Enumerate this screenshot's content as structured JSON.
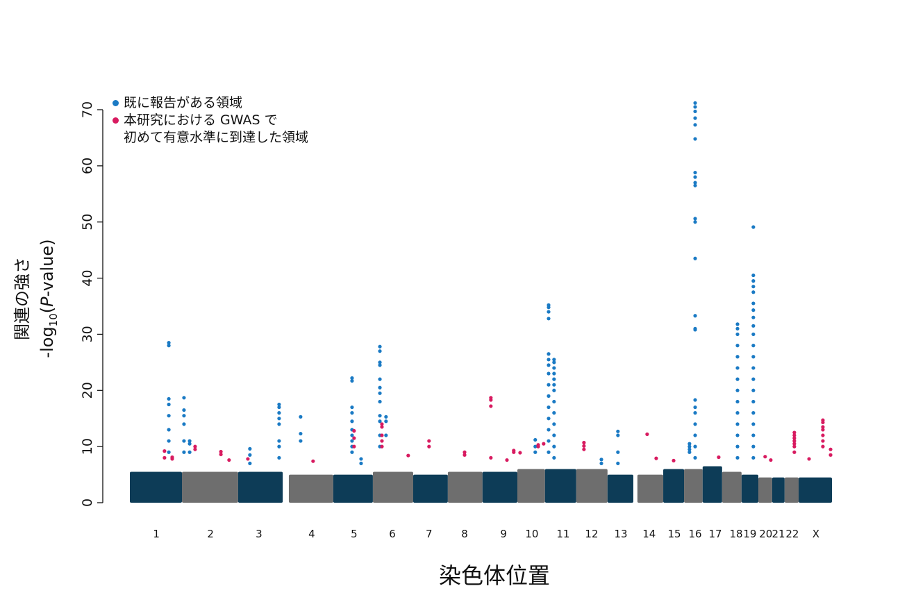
{
  "chart_data": {
    "type": "manhattan",
    "x_label": "染色体位置",
    "y_label": {
      "line1": "関連の強さ",
      "line2_parts": [
        "-log",
        "10",
        "(",
        "P",
        "-value)"
      ]
    },
    "xlim": [
      0,
      3100
    ],
    "ylim": [
      0,
      70
    ],
    "yticks": [
      0,
      10,
      20,
      30,
      40,
      50,
      60,
      70
    ],
    "xticks": [
      {
        "value": 117,
        "label": "1"
      },
      {
        "value": 356,
        "label": "2"
      },
      {
        "value": 570,
        "label": "3"
      },
      {
        "value": 803,
        "label": "4"
      },
      {
        "value": 990,
        "label": "5"
      },
      {
        "value": 1159,
        "label": "6"
      },
      {
        "value": 1321,
        "label": "7"
      },
      {
        "value": 1478,
        "label": "8"
      },
      {
        "value": 1650,
        "label": "9"
      },
      {
        "value": 1775,
        "label": "10"
      },
      {
        "value": 1913,
        "label": "11"
      },
      {
        "value": 2039,
        "label": "12"
      },
      {
        "value": 2168,
        "label": "13"
      },
      {
        "value": 2293,
        "label": "14"
      },
      {
        "value": 2404,
        "label": "15"
      },
      {
        "value": 2496,
        "label": "16"
      },
      {
        "value": 2585,
        "label": "17"
      },
      {
        "value": 2677,
        "label": "18"
      },
      {
        "value": 2738,
        "label": "19"
      },
      {
        "value": 2808,
        "label": "20"
      },
      {
        "value": 2864,
        "label": "21"
      },
      {
        "value": 2925,
        "label": "22"
      },
      {
        "value": 3029,
        "label": "X"
      }
    ],
    "bands": {
      "x": [
        [
          0,
          230
        ],
        [
          230,
          478
        ],
        [
          478,
          675
        ],
        [
          702,
          898
        ],
        [
          898,
          1073
        ],
        [
          1073,
          1251
        ],
        [
          1251,
          1404
        ],
        [
          1404,
          1557
        ],
        [
          1557,
          1711
        ],
        [
          1711,
          1833
        ],
        [
          1833,
          1971
        ],
        [
          1971,
          2109
        ],
        [
          2109,
          2223
        ],
        [
          2241,
          2355
        ],
        [
          2355,
          2447
        ],
        [
          2447,
          2529
        ],
        [
          2529,
          2615
        ],
        [
          2615,
          2701
        ],
        [
          2701,
          2775
        ],
        [
          2775,
          2836
        ],
        [
          2836,
          2891
        ],
        [
          2891,
          2953
        ],
        [
          2953,
          3100
        ]
      ],
      "tops": [
        5.5,
        5.5,
        5.5,
        5,
        5,
        5.5,
        5,
        5.5,
        5.5,
        6,
        6,
        6,
        5,
        5,
        6,
        6,
        6.5,
        5.5,
        5,
        4.5,
        4.5,
        4.5,
        4.5
      ],
      "colors": [
        "#0d3c57",
        "#6e6e6e",
        "#0d3c57",
        "#6e6e6e",
        "#0d3c57",
        "#6e6e6e",
        "#0d3c57",
        "#6e6e6e",
        "#0d3c57",
        "#6e6e6e",
        "#0d3c57",
        "#6e6e6e",
        "#0d3c57",
        "#6e6e6e",
        "#0d3c57",
        "#6e6e6e",
        "#0d3c57",
        "#6e6e6e",
        "#0d3c57",
        "#6e6e6e",
        "#0d3c57",
        "#6e6e6e",
        "#0d3c57"
      ]
    },
    "series": [
      {
        "name": "既に報告がある領域",
        "color": "#1a7ac4",
        "peaks": [
          {
            "x": 172,
            "values": [
              28.5,
              28,
              18.5,
              17.5,
              15.5,
              13,
              11,
              9
            ]
          },
          {
            "x": 239,
            "values": [
              18.7,
              16.5,
              15.5,
              14,
              11,
              9
            ]
          },
          {
            "x": 264,
            "values": [
              11,
              10.5,
              9
            ]
          },
          {
            "x": 530,
            "values": [
              9.6,
              8.5,
              7
            ]
          },
          {
            "x": 659,
            "values": [
              17.5,
              17,
              16,
              15,
              14,
              11,
              10,
              8
            ]
          },
          {
            "x": 754,
            "values": [
              15.3,
              12.3,
              11
            ]
          },
          {
            "x": 981,
            "values": [
              22.2,
              21.7,
              17,
              16,
              14.5,
              13,
              12,
              11,
              10,
              9
            ]
          },
          {
            "x": 1021,
            "values": [
              7.8,
              7
            ]
          },
          {
            "x": 1104,
            "values": [
              27.8,
              27,
              25,
              24.5,
              22,
              20.5,
              19.5,
              18,
              15.5,
              14.5,
              12,
              10
            ]
          },
          {
            "x": 1131,
            "values": [
              15.3,
              14.5,
              12
            ]
          },
          {
            "x": 1790,
            "values": [
              11.2,
              10,
              9
            ]
          },
          {
            "x": 1849,
            "values": [
              35.2,
              34.8,
              34,
              32.8,
              26.5,
              25.5,
              24.5,
              23,
              21,
              19,
              17,
              15,
              13,
              11,
              9
            ]
          },
          {
            "x": 1873,
            "values": [
              25.5,
              25,
              24,
              23,
              22,
              21,
              20,
              18,
              16,
              14,
              12,
              10,
              8
            ]
          },
          {
            "x": 2082,
            "values": [
              7.7,
              7
            ]
          },
          {
            "x": 2155,
            "values": [
              12.7,
              12,
              9,
              7
            ]
          },
          {
            "x": 2471,
            "values": [
              10.5,
              10,
              9.5,
              9
            ]
          },
          {
            "x": 2496,
            "values": [
              71.2,
              70.5,
              69.7,
              68.5,
              67.3,
              64.8,
              58.8,
              58,
              57,
              56.5,
              50.6,
              50,
              43.5,
              33.3,
              31,
              30.8,
              18.3,
              17,
              16,
              14,
              12,
              10,
              8
            ]
          },
          {
            "x": 2683,
            "values": [
              31.8,
              31,
              30,
              28,
              26,
              24,
              22,
              20,
              18,
              16,
              14,
              12,
              10,
              8
            ]
          },
          {
            "x": 2753,
            "values": [
              49.1,
              40.5,
              39.5,
              38.5,
              37.5,
              35.5,
              34.3,
              33,
              31.5,
              30,
              28,
              26,
              24,
              22,
              20,
              18,
              16,
              14,
              12,
              10,
              8
            ]
          }
        ]
      },
      {
        "name": "本研究における GWAS で\n初めて有意水準に到達した領域",
        "color": "#d81b60",
        "peaks": [
          {
            "x": 153,
            "values": [
              9.2,
              8
            ]
          },
          {
            "x": 187,
            "values": [
              8.1,
              7.8
            ]
          },
          {
            "x": 288,
            "values": [
              10,
              9.5
            ]
          },
          {
            "x": 402,
            "values": [
              9.1,
              8.6
            ]
          },
          {
            "x": 438,
            "values": [
              7.6
            ]
          },
          {
            "x": 521,
            "values": [
              7.8
            ]
          },
          {
            "x": 809,
            "values": [
              7.4
            ]
          },
          {
            "x": 990,
            "values": [
              12.8,
              11.5,
              10
            ]
          },
          {
            "x": 1113,
            "values": [
              14,
              13.5,
              12,
              11,
              10
            ]
          },
          {
            "x": 1229,
            "values": [
              8.4
            ]
          },
          {
            "x": 1321,
            "values": [
              11,
              10
            ]
          },
          {
            "x": 1478,
            "values": [
              9,
              8.5
            ]
          },
          {
            "x": 1594,
            "values": [
              18.7,
              18.3,
              17.2,
              8
            ]
          },
          {
            "x": 1665,
            "values": [
              7.6
            ]
          },
          {
            "x": 1695,
            "values": [
              9.3,
              9
            ]
          },
          {
            "x": 1723,
            "values": [
              8.9
            ]
          },
          {
            "x": 1803,
            "values": [
              10.3,
              10
            ]
          },
          {
            "x": 1827,
            "values": [
              10.5
            ]
          },
          {
            "x": 2005,
            "values": [
              10.7,
              10.1,
              9.5
            ]
          },
          {
            "x": 2284,
            "values": [
              12.2
            ]
          },
          {
            "x": 2324,
            "values": [
              7.9
            ]
          },
          {
            "x": 2401,
            "values": [
              7.5
            ]
          },
          {
            "x": 2600,
            "values": [
              8.1
            ]
          },
          {
            "x": 2805,
            "values": [
              8.2
            ]
          },
          {
            "x": 2830,
            "values": [
              7.6
            ]
          },
          {
            "x": 2934,
            "values": [
              12.5,
              12,
              11.5,
              11,
              10.5,
              10,
              9
            ]
          },
          {
            "x": 2999,
            "values": [
              7.8
            ]
          },
          {
            "x": 3060,
            "values": [
              14.7,
              14.3,
              13.5,
              13,
              12,
              11,
              10
            ]
          },
          {
            "x": 3094,
            "values": [
              9.5,
              8.5
            ]
          }
        ]
      }
    ]
  }
}
